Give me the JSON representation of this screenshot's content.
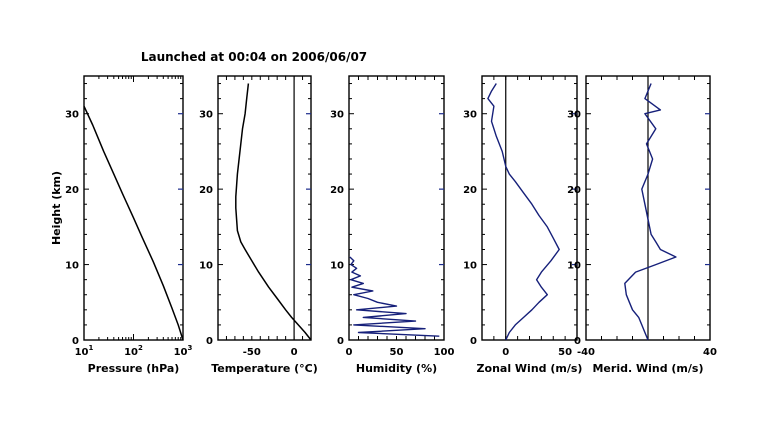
{
  "title": "Launched at 00:04 on 2006/06/07",
  "colors": {
    "frame": "#000000",
    "trace": "#000000",
    "trace_highlight": "#16207a",
    "background": "#ffffff"
  },
  "chart_data": [
    {
      "type": "line",
      "xlabel": "Pressure (hPa)",
      "ylabel": "Height (km)",
      "xscale": "log",
      "xlim": [
        10,
        1000
      ],
      "ylim": [
        0,
        35
      ],
      "xticks": [
        "10^1",
        "10^2",
        "10^3"
      ],
      "yticks": [
        0,
        10,
        20,
        30
      ],
      "series": [
        {
          "x": [
            1000,
            800,
            600,
            400,
            250,
            150,
            100,
            60,
            40,
            25,
            15,
            10
          ],
          "y": [
            0,
            2,
            4.2,
            7.2,
            10.4,
            13.6,
            16.2,
            19.4,
            22,
            25,
            28.5,
            31
          ]
        }
      ]
    },
    {
      "type": "line",
      "xlabel": "Temperature (°C)",
      "ylabel": "",
      "xlim": [
        -90,
        20
      ],
      "ylim": [
        0,
        35
      ],
      "xticks": [
        "-50",
        "0"
      ],
      "yticks": [
        0,
        10,
        20,
        30
      ],
      "zero_line": 0,
      "series": [
        {
          "x": [
            20,
            13,
            5,
            -3,
            -10,
            -20,
            -30,
            -42,
            -50,
            -58,
            -63,
            -67,
            -68,
            -69,
            -69,
            -68,
            -67,
            -65,
            -63,
            -61,
            -58,
            -56,
            -54
          ],
          "y": [
            0,
            1,
            2,
            3,
            4,
            5.5,
            7,
            9,
            10.5,
            12,
            13,
            14.5,
            16,
            17.5,
            19,
            20.5,
            22,
            24,
            26,
            28,
            30,
            32,
            34
          ]
        }
      ]
    },
    {
      "type": "line",
      "xlabel": "Humidity (%)",
      "ylabel": "",
      "xlim": [
        0,
        100
      ],
      "ylim": [
        0,
        35
      ],
      "xticks": [
        "0",
        "50",
        "100"
      ],
      "yticks": [
        0,
        10,
        20,
        30
      ],
      "series": [
        {
          "x": [
            95,
            10,
            80,
            5,
            70,
            15,
            60,
            8,
            50,
            30,
            20,
            5,
            25,
            3,
            15,
            2,
            12,
            3,
            8,
            2,
            5,
            1
          ],
          "y": [
            0.5,
            1,
            1.5,
            2,
            2.5,
            3,
            3.5,
            4,
            4.5,
            5,
            5.5,
            6,
            6.5,
            7,
            7.5,
            8,
            8.5,
            9,
            9.5,
            10,
            10.5,
            11
          ]
        }
      ]
    },
    {
      "type": "line",
      "xlabel": "Zonal Wind (m/s)",
      "ylabel": "",
      "xlim": [
        -20,
        60
      ],
      "ylim": [
        0,
        35
      ],
      "xticks": [
        "0",
        "50"
      ],
      "yticks": [
        0,
        10,
        20,
        30
      ],
      "zero_line": 0,
      "series": [
        {
          "x": [
            0,
            3,
            8,
            15,
            22,
            28,
            35,
            30,
            26,
            30,
            38,
            45,
            40,
            35,
            28,
            22,
            15,
            8,
            3,
            0,
            -3,
            -8,
            -12,
            -10,
            -15,
            -12,
            -8
          ],
          "y": [
            0,
            1,
            2,
            3,
            4,
            5,
            6,
            7,
            8,
            9,
            10.5,
            12,
            13.5,
            15,
            16.5,
            18,
            19.5,
            21,
            22,
            23,
            25,
            27,
            29,
            31,
            32,
            33,
            34
          ]
        }
      ]
    },
    {
      "type": "line",
      "xlabel": "Merid. Wind (m/s)",
      "ylabel": "",
      "xlim": [
        -40,
        40
      ],
      "ylim": [
        0,
        35
      ],
      "xticks": [
        "-40",
        "40"
      ],
      "yticks": [
        0,
        10,
        20,
        30
      ],
      "zero_line": 0,
      "series": [
        {
          "x": [
            0,
            -2,
            -4,
            -6,
            -10,
            -12,
            -14,
            -15,
            -8,
            5,
            18,
            8,
            5,
            2,
            0,
            -2,
            -4,
            0,
            3,
            -1,
            5,
            -2,
            8,
            -2,
            2
          ],
          "y": [
            0,
            1,
            2,
            3,
            4,
            5,
            6,
            7.5,
            9,
            10,
            11,
            12,
            13,
            14,
            16,
            18,
            20,
            22,
            24,
            26,
            28,
            30,
            30.5,
            32,
            34
          ]
        }
      ]
    }
  ]
}
